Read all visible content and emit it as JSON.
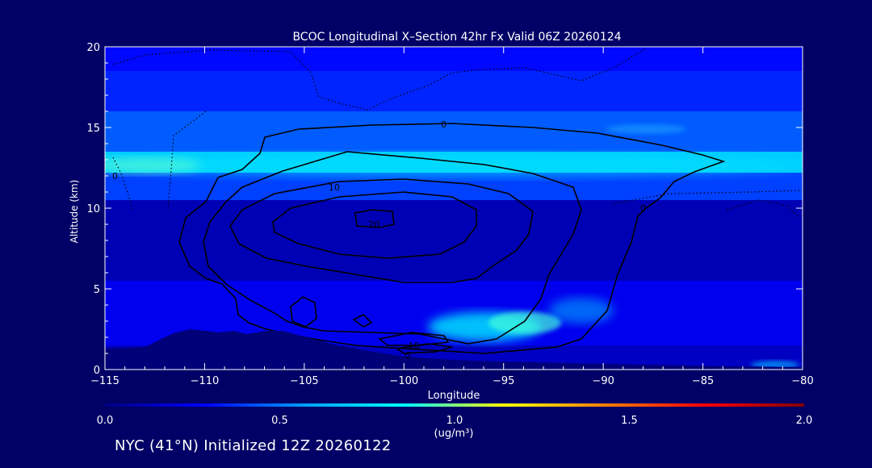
{
  "chart_data": {
    "type": "heatmap",
    "title": "BCOC Longitudinal X–Section 42hr  Fx Valid 06Z 20260124",
    "xlabel": "Longitude",
    "ylabel": "Altitude (km)",
    "xlim": [
      -115,
      -80
    ],
    "ylim": [
      0,
      20
    ],
    "xticks": [
      -115,
      -110,
      -105,
      -100,
      -95,
      -90,
      -85,
      -80
    ],
    "xtick_labels": [
      "−115",
      "−110",
      "−105",
      "−100",
      "−95",
      "−90",
      "−85",
      "−80"
    ],
    "yticks": [
      0,
      5,
      10,
      15,
      20
    ],
    "ytick_labels": [
      "0",
      "5",
      "10",
      "15",
      "20"
    ],
    "colorbar": {
      "min": 0.0,
      "max": 2.0,
      "ticks": [
        0.0,
        0.5,
        1.0,
        1.5,
        2.0
      ],
      "tick_labels": [
        "0.0",
        "0.5",
        "1.0",
        "1.5",
        "2.0"
      ],
      "unit": "(ug/m³)",
      "colors": [
        "#000080",
        "#0000ff",
        "#00a0ff",
        "#00ffff",
        "#ffff00",
        "#ff8000",
        "#ff0000",
        "#800000"
      ]
    },
    "shading_levels": [
      {
        "alt_top": 20,
        "alt_bottom": 18.5,
        "value": 0.3
      },
      {
        "alt_top": 18.5,
        "alt_bottom": 16,
        "value": 0.35
      },
      {
        "alt_top": 16,
        "alt_bottom": 13.5,
        "value": 0.45
      },
      {
        "alt_top": 13.5,
        "alt_bottom": 12.2,
        "value": 0.7
      },
      {
        "alt_top": 12.2,
        "alt_bottom": 10.5,
        "value": 0.4
      },
      {
        "alt_top": 10.5,
        "alt_bottom": 5.5,
        "value": 0.12
      },
      {
        "alt_top": 5.5,
        "alt_bottom": 1.5,
        "value": 0.25
      }
    ],
    "contour_labels": [
      {
        "text": "0",
        "lon": -98,
        "alt": 15.2
      },
      {
        "text": "10",
        "lon": -103.5,
        "alt": 11.3
      },
      {
        "text": "20",
        "lon": -101.5,
        "alt": 9.0
      },
      {
        "text": "10",
        "lon": -99.5,
        "alt": 1.5
      },
      {
        "text": "0",
        "lon": -99.8,
        "alt": 0.9
      },
      {
        "text": "0",
        "lon": -114.5,
        "alt": 12.0
      },
      {
        "text": "0",
        "lon": -88,
        "alt": 10.0
      }
    ]
  },
  "footer": {
    "text": "NYC (41°N) Initialized 12Z 20260122"
  }
}
